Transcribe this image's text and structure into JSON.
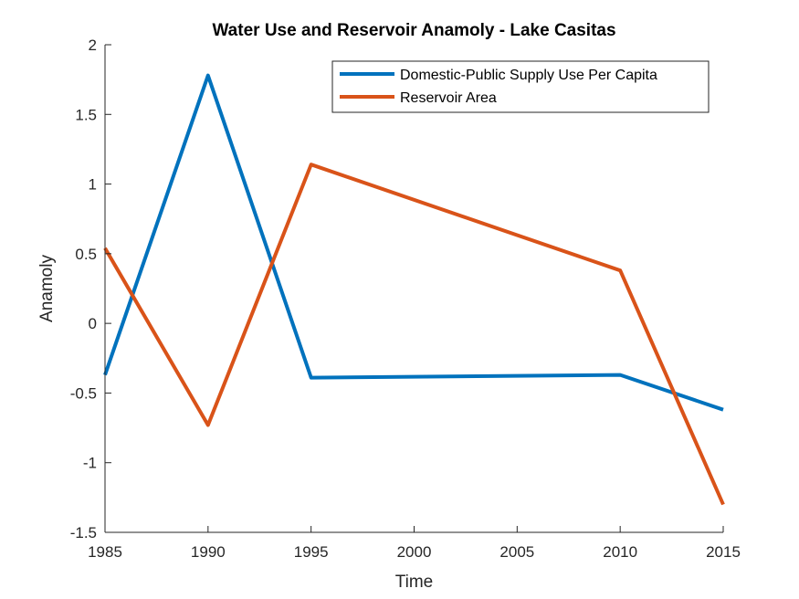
{
  "chart_data": {
    "type": "line",
    "title": "Water Use and Reservoir Anamoly - Lake Casitas",
    "xlabel": "Time",
    "ylabel": "Anamoly",
    "xlim": [
      1985,
      2015
    ],
    "ylim": [
      -1.5,
      2
    ],
    "xticks": [
      1985,
      1990,
      1995,
      2000,
      2005,
      2010,
      2015
    ],
    "yticks": [
      -1.5,
      -1,
      -0.5,
      0,
      0.5,
      1,
      1.5,
      2
    ],
    "xtick_labels": [
      "1985",
      "1990",
      "1995",
      "2000",
      "2005",
      "2010",
      "2015"
    ],
    "ytick_labels": [
      "-1.5",
      "-1",
      "-0.5",
      "0",
      "0.5",
      "1",
      "1.5",
      "2"
    ],
    "grid": false,
    "legend_position": "top-right",
    "series": [
      {
        "name": "Domestic-Public Supply Use Per Capita",
        "color": "#0072BD",
        "x": [
          1985,
          1990,
          1995,
          2010,
          2015
        ],
        "y": [
          -0.37,
          1.78,
          -0.39,
          -0.37,
          -0.62
        ]
      },
      {
        "name": "Reservoir Area",
        "color": "#D95319",
        "x": [
          1985,
          1990,
          1995,
          2010,
          2015
        ],
        "y": [
          0.54,
          -0.73,
          1.14,
          0.38,
          -1.3
        ]
      }
    ]
  }
}
